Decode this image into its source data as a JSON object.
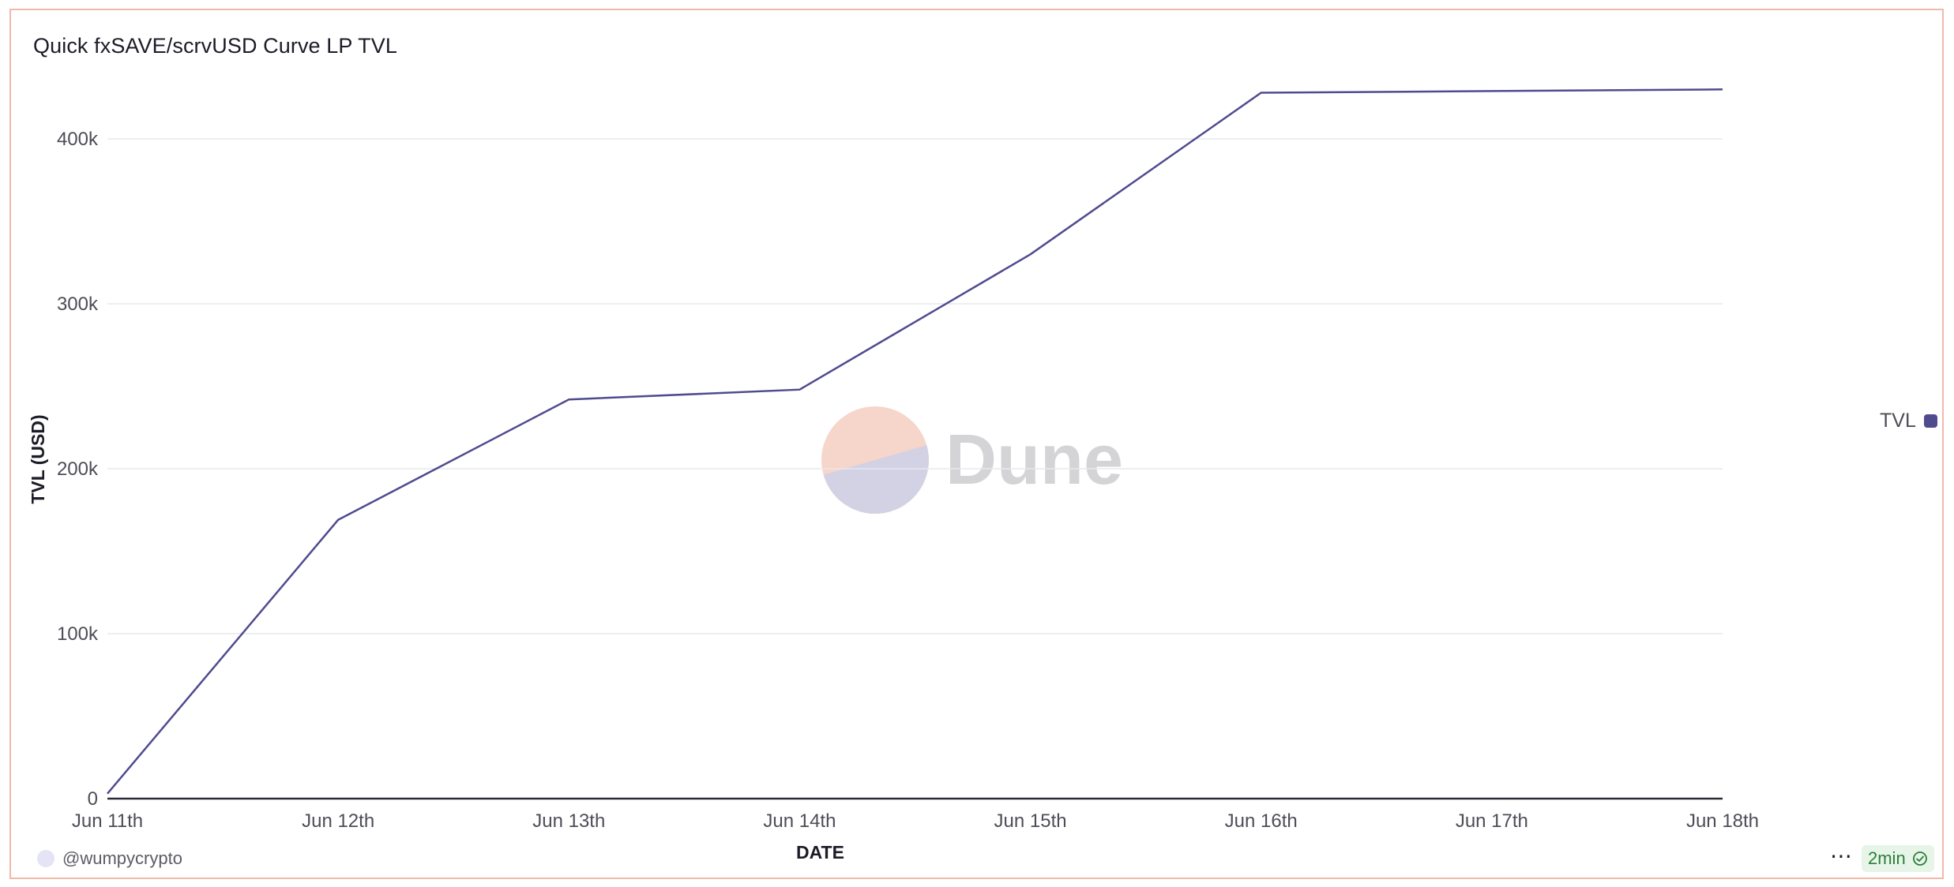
{
  "title": "Quick fxSAVE/scrvUSD Curve LP TVL",
  "author": "@wumpycrypto",
  "refresh_label": "2min",
  "watermark": "Dune",
  "legend_label": "TVL",
  "colors": {
    "series": "#4f4b8f",
    "grid": "#e8e8ee",
    "axis": "#2b2b33",
    "accent_badge": "#2e7d3a"
  },
  "chart_data": {
    "type": "line",
    "title": "Quick fxSAVE/scrvUSD Curve LP TVL",
    "xlabel": "DATE",
    "ylabel": "TVL (USD)",
    "ylim": [
      0,
      400000
    ],
    "y_ticks": [
      0,
      100000,
      200000,
      300000,
      400000
    ],
    "y_tick_labels": [
      "0",
      "100k",
      "200k",
      "300k",
      "400k"
    ],
    "x_tick_labels": [
      "Jun 11th",
      "Jun 12th",
      "Jun 13th",
      "Jun 14th",
      "Jun 15th",
      "Jun 16th",
      "Jun 17th",
      "Jun 18th"
    ],
    "grid": true,
    "legend": "right",
    "series": [
      {
        "name": "TVL",
        "x": [
          "Jun 11th",
          "Jun 12th",
          "Jun 13th",
          "Jun 14th",
          "Jun 15th",
          "Jun 16th",
          "Jun 17th",
          "Jun 18th"
        ],
        "values": [
          3000,
          169000,
          242000,
          248000,
          330000,
          428000,
          429000,
          430000
        ]
      }
    ]
  }
}
